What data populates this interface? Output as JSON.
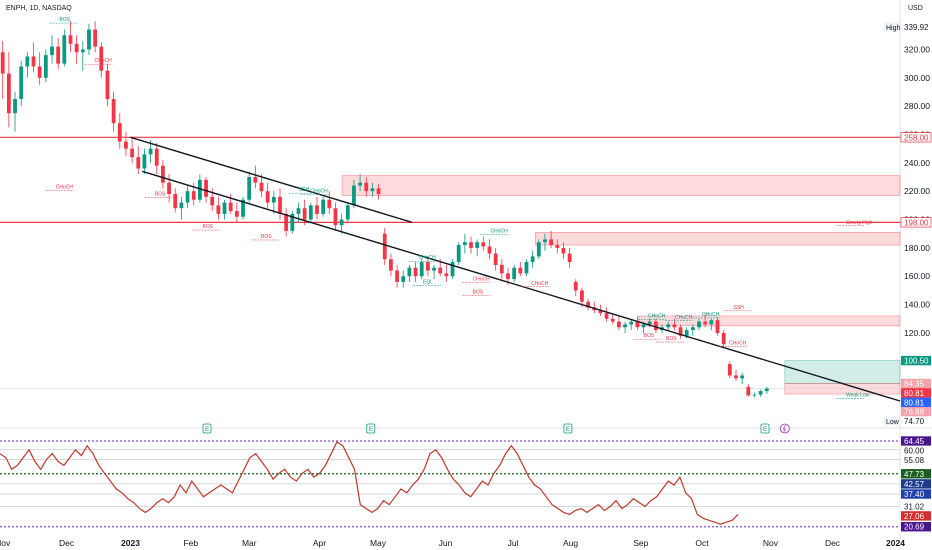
{
  "header": {
    "symbol": "ENPH, 1D, NASDAQ",
    "currency": "USD"
  },
  "chart_data": {
    "type": "candlestick",
    "y_axis": {
      "range": [
        60,
        345
      ],
      "ticks": [
        60,
        80,
        100,
        120,
        140,
        160,
        180,
        200,
        220,
        240,
        260,
        280,
        300,
        320
      ]
    },
    "x_axis": {
      "labels": [
        {
          "label": "Nov",
          "pos": 0.003
        },
        {
          "label": "Dec",
          "pos": 0.074
        },
        {
          "label": "2023",
          "pos": 0.145
        },
        {
          "label": "Feb",
          "pos": 0.212
        },
        {
          "label": "Mar",
          "pos": 0.277
        },
        {
          "label": "Apr",
          "pos": 0.355
        },
        {
          "label": "May",
          "pos": 0.42
        },
        {
          "label": "Jun",
          "pos": 0.495
        },
        {
          "label": "Jul",
          "pos": 0.57
        },
        {
          "label": "Aug",
          "pos": 0.634
        },
        {
          "label": "Sep",
          "pos": 0.712
        },
        {
          "label": "Oct",
          "pos": 0.78
        },
        {
          "label": "Nov",
          "pos": 0.856
        },
        {
          "label": "Dec",
          "pos": 0.925
        },
        {
          "label": "2024",
          "pos": 0.995
        }
      ]
    },
    "price_tags": [
      {
        "label": "High",
        "value": 339.92,
        "style": "high"
      },
      {
        "label": "",
        "value": 258.0,
        "style": "red-outline"
      },
      {
        "label": "",
        "value": 198.0,
        "style": "red-outline"
      },
      {
        "label": "",
        "value": 100.5,
        "style": "teal"
      },
      {
        "label": "",
        "value": 84.35,
        "style": "pink"
      },
      {
        "label": "",
        "value": 80.81,
        "style": "red"
      },
      {
        "label": "",
        "value": 80.81,
        "style": "blue"
      },
      {
        "label": "",
        "value": 76.88,
        "style": "pink"
      },
      {
        "label": "Low",
        "value": 74.7,
        "style": "low"
      }
    ],
    "horizontal_levels": [
      258,
      198
    ],
    "zones": [
      {
        "from_x": 0.38,
        "to_x": 1.0,
        "low": 217,
        "high": 231,
        "kind": "supply"
      },
      {
        "from_x": 0.595,
        "to_x": 1.0,
        "low": 182,
        "high": 191,
        "kind": "supply"
      },
      {
        "from_x": 0.71,
        "to_x": 1.0,
        "low": 125,
        "high": 132,
        "kind": "supply"
      },
      {
        "from_x": 0.872,
        "to_x": 1.0,
        "low": 84.35,
        "high": 100.5,
        "kind": "target"
      },
      {
        "from_x": 0.872,
        "to_x": 1.0,
        "low": 76.88,
        "high": 84.35,
        "kind": "stop"
      }
    ],
    "trendlines": [
      {
        "x1": 0.145,
        "y1": 258,
        "x2": 0.458,
        "y2": 198
      },
      {
        "x1": 0.158,
        "y1": 234,
        "x2": 1.0,
        "y2": 72
      }
    ],
    "annotations": [
      {
        "text": "BOS",
        "x": 0.066,
        "y": 340,
        "color": "#089981"
      },
      {
        "text": "CHoCH",
        "x": 0.105,
        "y": 311,
        "color": "#f23645"
      },
      {
        "text": "CHoCH",
        "x": 0.062,
        "y": 222,
        "color": "#f23645"
      },
      {
        "text": "BOS",
        "x": 0.172,
        "y": 217,
        "color": "#f23645"
      },
      {
        "text": "CHoCH",
        "x": 0.345,
        "y": 219,
        "color": "#089981"
      },
      {
        "text": "SSH",
        "x": 0.332,
        "y": 220,
        "color": "#089981"
      },
      {
        "text": "BOS",
        "x": 0.29,
        "y": 187,
        "color": "#f23645"
      },
      {
        "text": "BOS",
        "x": 0.225,
        "y": 194,
        "color": "#f23645"
      },
      {
        "text": "CHoCH",
        "x": 0.545,
        "y": 191,
        "color": "#089981"
      },
      {
        "text": "CHoCH",
        "x": 0.465,
        "y": 172,
        "color": "#089981"
      },
      {
        "text": "CHoCH",
        "x": 0.525,
        "y": 157,
        "color": "#f23645"
      },
      {
        "text": "CHoCH",
        "x": 0.59,
        "y": 154,
        "color": "#f23645"
      },
      {
        "text": "EQL",
        "x": 0.47,
        "y": 155,
        "color": "#089981"
      },
      {
        "text": "BOS",
        "x": 0.525,
        "y": 148,
        "color": "#f23645"
      },
      {
        "text": "CHoCH",
        "x": 0.72,
        "y": 131,
        "color": "#089981"
      },
      {
        "text": "CHoCH",
        "x": 0.75,
        "y": 130,
        "color": "#089981"
      },
      {
        "text": "CHoCH",
        "x": 0.78,
        "y": 132,
        "color": "#089981"
      },
      {
        "text": "SSH",
        "x": 0.815,
        "y": 137,
        "color": "#f23645"
      },
      {
        "text": "BOS",
        "x": 0.715,
        "y": 117,
        "color": "#f23645"
      },
      {
        "text": "BOS",
        "x": 0.74,
        "y": 115,
        "color": "#f23645"
      },
      {
        "text": "CHoCH",
        "x": 0.81,
        "y": 112,
        "color": "#f23645"
      },
      {
        "text": "Strong High",
        "x": 0.94,
        "y": 197,
        "color": "#f23645"
      },
      {
        "text": "Weak Low",
        "x": 0.94,
        "y": 75,
        "color": "#089981"
      }
    ],
    "earnings_markers": [
      0.23,
      0.412,
      0.631,
      0.85
    ],
    "dividend_markers": [
      0.872
    ],
    "candles": [
      {
        "o": 318,
        "h": 326,
        "l": 285,
        "c": 303
      },
      {
        "o": 303,
        "h": 318,
        "l": 265,
        "c": 275
      },
      {
        "o": 275,
        "h": 290,
        "l": 262,
        "c": 285
      },
      {
        "o": 285,
        "h": 312,
        "l": 280,
        "c": 308
      },
      {
        "o": 308,
        "h": 318,
        "l": 300,
        "c": 315
      },
      {
        "o": 315,
        "h": 325,
        "l": 304,
        "c": 308
      },
      {
        "o": 308,
        "h": 318,
        "l": 295,
        "c": 300
      },
      {
        "o": 300,
        "h": 320,
        "l": 297,
        "c": 316
      },
      {
        "o": 316,
        "h": 330,
        "l": 310,
        "c": 322
      },
      {
        "o": 322,
        "h": 328,
        "l": 306,
        "c": 310
      },
      {
        "o": 310,
        "h": 334,
        "l": 308,
        "c": 330
      },
      {
        "o": 330,
        "h": 340,
        "l": 318,
        "c": 324
      },
      {
        "o": 324,
        "h": 330,
        "l": 310,
        "c": 318
      },
      {
        "o": 318,
        "h": 326,
        "l": 305,
        "c": 320
      },
      {
        "o": 320,
        "h": 338,
        "l": 316,
        "c": 334
      },
      {
        "o": 334,
        "h": 339.92,
        "l": 318,
        "c": 322
      },
      {
        "o": 322,
        "h": 325,
        "l": 300,
        "c": 305
      },
      {
        "o": 305,
        "h": 310,
        "l": 280,
        "c": 285
      },
      {
        "o": 285,
        "h": 290,
        "l": 262,
        "c": 268
      },
      {
        "o": 268,
        "h": 275,
        "l": 250,
        "c": 255
      },
      {
        "o": 255,
        "h": 262,
        "l": 245,
        "c": 250
      },
      {
        "o": 250,
        "h": 258,
        "l": 240,
        "c": 244
      },
      {
        "o": 244,
        "h": 252,
        "l": 232,
        "c": 236
      },
      {
        "o": 236,
        "h": 250,
        "l": 232,
        "c": 246
      },
      {
        "o": 246,
        "h": 256,
        "l": 240,
        "c": 250
      },
      {
        "o": 250,
        "h": 254,
        "l": 232,
        "c": 238
      },
      {
        "o": 238,
        "h": 242,
        "l": 222,
        "c": 226
      },
      {
        "o": 226,
        "h": 232,
        "l": 212,
        "c": 218
      },
      {
        "o": 218,
        "h": 222,
        "l": 205,
        "c": 208
      },
      {
        "o": 208,
        "h": 216,
        "l": 200,
        "c": 212
      },
      {
        "o": 212,
        "h": 224,
        "l": 208,
        "c": 220
      },
      {
        "o": 220,
        "h": 226,
        "l": 210,
        "c": 214
      },
      {
        "o": 214,
        "h": 232,
        "l": 212,
        "c": 228
      },
      {
        "o": 228,
        "h": 230,
        "l": 212,
        "c": 216
      },
      {
        "o": 216,
        "h": 222,
        "l": 206,
        "c": 210
      },
      {
        "o": 210,
        "h": 216,
        "l": 200,
        "c": 204
      },
      {
        "o": 204,
        "h": 214,
        "l": 200,
        "c": 212
      },
      {
        "o": 212,
        "h": 218,
        "l": 204,
        "c": 206
      },
      {
        "o": 206,
        "h": 212,
        "l": 198,
        "c": 202
      },
      {
        "o": 202,
        "h": 216,
        "l": 200,
        "c": 214
      },
      {
        "o": 214,
        "h": 234,
        "l": 212,
        "c": 230
      },
      {
        "o": 230,
        "h": 238,
        "l": 222,
        "c": 226
      },
      {
        "o": 226,
        "h": 232,
        "l": 216,
        "c": 220
      },
      {
        "o": 220,
        "h": 226,
        "l": 208,
        "c": 212
      },
      {
        "o": 212,
        "h": 220,
        "l": 204,
        "c": 216
      },
      {
        "o": 216,
        "h": 222,
        "l": 200,
        "c": 204
      },
      {
        "o": 204,
        "h": 208,
        "l": 188,
        "c": 192
      },
      {
        "o": 192,
        "h": 206,
        "l": 190,
        "c": 204
      },
      {
        "o": 204,
        "h": 212,
        "l": 198,
        "c": 208
      },
      {
        "o": 208,
        "h": 214,
        "l": 196,
        "c": 200
      },
      {
        "o": 200,
        "h": 212,
        "l": 198,
        "c": 210
      },
      {
        "o": 210,
        "h": 216,
        "l": 200,
        "c": 204
      },
      {
        "o": 204,
        "h": 216,
        "l": 202,
        "c": 214
      },
      {
        "o": 214,
        "h": 220,
        "l": 204,
        "c": 208
      },
      {
        "o": 208,
        "h": 212,
        "l": 192,
        "c": 196
      },
      {
        "o": 196,
        "h": 204,
        "l": 190,
        "c": 200
      },
      {
        "o": 200,
        "h": 212,
        "l": 198,
        "c": 210
      },
      {
        "o": 210,
        "h": 228,
        "l": 208,
        "c": 224
      },
      {
        "o": 224,
        "h": 232,
        "l": 220,
        "c": 226
      },
      {
        "o": 226,
        "h": 230,
        "l": 216,
        "c": 220
      },
      {
        "o": 220,
        "h": 226,
        "l": 216,
        "c": 222
      },
      {
        "o": 222,
        "h": 225,
        "l": 214,
        "c": 218
      },
      {
        "o": 190,
        "h": 194,
        "l": 168,
        "c": 172
      },
      {
        "o": 172,
        "h": 176,
        "l": 160,
        "c": 164
      },
      {
        "o": 164,
        "h": 168,
        "l": 152,
        "c": 156
      },
      {
        "o": 156,
        "h": 164,
        "l": 152,
        "c": 160
      },
      {
        "o": 160,
        "h": 168,
        "l": 156,
        "c": 166
      },
      {
        "o": 166,
        "h": 170,
        "l": 156,
        "c": 160
      },
      {
        "o": 160,
        "h": 172,
        "l": 158,
        "c": 170
      },
      {
        "o": 170,
        "h": 174,
        "l": 160,
        "c": 164
      },
      {
        "o": 164,
        "h": 168,
        "l": 158,
        "c": 166
      },
      {
        "o": 166,
        "h": 172,
        "l": 160,
        "c": 162
      },
      {
        "o": 162,
        "h": 168,
        "l": 156,
        "c": 160
      },
      {
        "o": 160,
        "h": 172,
        "l": 158,
        "c": 170
      },
      {
        "o": 170,
        "h": 184,
        "l": 168,
        "c": 182
      },
      {
        "o": 182,
        "h": 190,
        "l": 176,
        "c": 184
      },
      {
        "o": 184,
        "h": 188,
        "l": 176,
        "c": 180
      },
      {
        "o": 180,
        "h": 186,
        "l": 174,
        "c": 184
      },
      {
        "o": 184,
        "h": 188,
        "l": 178,
        "c": 181
      },
      {
        "o": 181,
        "h": 186,
        "l": 172,
        "c": 176
      },
      {
        "o": 176,
        "h": 180,
        "l": 164,
        "c": 168
      },
      {
        "o": 168,
        "h": 172,
        "l": 158,
        "c": 162
      },
      {
        "o": 162,
        "h": 166,
        "l": 154,
        "c": 158
      },
      {
        "o": 158,
        "h": 168,
        "l": 156,
        "c": 166
      },
      {
        "o": 166,
        "h": 170,
        "l": 160,
        "c": 162
      },
      {
        "o": 162,
        "h": 172,
        "l": 160,
        "c": 170
      },
      {
        "o": 170,
        "h": 178,
        "l": 166,
        "c": 174
      },
      {
        "o": 174,
        "h": 186,
        "l": 172,
        "c": 184
      },
      {
        "o": 184,
        "h": 190,
        "l": 178,
        "c": 186
      },
      {
        "o": 186,
        "h": 192,
        "l": 180,
        "c": 182
      },
      {
        "o": 182,
        "h": 186,
        "l": 176,
        "c": 180
      },
      {
        "o": 180,
        "h": 184,
        "l": 172,
        "c": 176
      },
      {
        "o": 176,
        "h": 180,
        "l": 166,
        "c": 170
      },
      {
        "o": 156,
        "h": 158,
        "l": 146,
        "c": 150
      },
      {
        "o": 150,
        "h": 152,
        "l": 138,
        "c": 142
      },
      {
        "o": 142,
        "h": 144,
        "l": 136,
        "c": 138
      },
      {
        "o": 138,
        "h": 142,
        "l": 134,
        "c": 136
      },
      {
        "o": 136,
        "h": 140,
        "l": 132,
        "c": 134
      },
      {
        "o": 134,
        "h": 138,
        "l": 128,
        "c": 130
      },
      {
        "o": 130,
        "h": 134,
        "l": 126,
        "c": 128
      },
      {
        "o": 128,
        "h": 132,
        "l": 122,
        "c": 124
      },
      {
        "o": 124,
        "h": 128,
        "l": 120,
        "c": 126
      },
      {
        "o": 126,
        "h": 130,
        "l": 122,
        "c": 128
      },
      {
        "o": 128,
        "h": 132,
        "l": 122,
        "c": 124
      },
      {
        "o": 124,
        "h": 128,
        "l": 120,
        "c": 126
      },
      {
        "o": 126,
        "h": 130,
        "l": 124,
        "c": 128
      },
      {
        "o": 128,
        "h": 130,
        "l": 120,
        "c": 122
      },
      {
        "o": 122,
        "h": 126,
        "l": 120,
        "c": 124
      },
      {
        "o": 124,
        "h": 128,
        "l": 122,
        "c": 126
      },
      {
        "o": 126,
        "h": 130,
        "l": 122,
        "c": 124
      },
      {
        "o": 124,
        "h": 126,
        "l": 116,
        "c": 118
      },
      {
        "o": 118,
        "h": 124,
        "l": 116,
        "c": 122
      },
      {
        "o": 122,
        "h": 126,
        "l": 118,
        "c": 124
      },
      {
        "o": 124,
        "h": 130,
        "l": 122,
        "c": 128
      },
      {
        "o": 128,
        "h": 134,
        "l": 124,
        "c": 126
      },
      {
        "o": 126,
        "h": 130,
        "l": 122,
        "c": 129
      },
      {
        "o": 129,
        "h": 131,
        "l": 118,
        "c": 120
      },
      {
        "o": 120,
        "h": 122,
        "l": 110,
        "c": 112
      },
      {
        "o": 98,
        "h": 100,
        "l": 88,
        "c": 90
      },
      {
        "o": 90,
        "h": 94,
        "l": 86,
        "c": 88
      },
      {
        "o": 88,
        "h": 92,
        "l": 84,
        "c": 90
      },
      {
        "o": 82,
        "h": 84,
        "l": 75,
        "c": 76
      },
      {
        "o": 76,
        "h": 78,
        "l": 74.7,
        "c": 76.5
      },
      {
        "o": 76.5,
        "h": 80,
        "l": 75,
        "c": 79
      },
      {
        "o": 79,
        "h": 82,
        "l": 77,
        "c": 80.81
      }
    ]
  },
  "rsi": {
    "y_range": [
      18,
      66
    ],
    "levels": [
      {
        "value": 64.45,
        "style": "dotted",
        "color": "#7e57c2"
      },
      {
        "value": 60.0,
        "style": "solid-thin",
        "color": "#b2b5be"
      },
      {
        "value": 55.08,
        "style": "solid-thin",
        "color": "#b2b5be"
      },
      {
        "value": 47.73,
        "style": "dotted",
        "color": "#1b5e20"
      },
      {
        "value": 42.57,
        "style": "solid-thin",
        "color": "#b2b5be"
      },
      {
        "value": 37.4,
        "style": "solid-thin",
        "color": "#b2b5be"
      },
      {
        "value": 31.02,
        "style": "solid-thin",
        "color": "#b2b5be"
      },
      {
        "value": 20.69,
        "style": "dotted",
        "color": "#7e57c2"
      }
    ],
    "tags": [
      {
        "value": 64.45,
        "color": "#4a148c"
      },
      {
        "value": 60.0,
        "color": "none"
      },
      {
        "value": 55.08,
        "color": "none"
      },
      {
        "value": 47.73,
        "color": "#1b5e20"
      },
      {
        "value": 42.57,
        "color": "#1e3a8a"
      },
      {
        "value": 37.4,
        "color": "#1e40af"
      },
      {
        "value": 31.02,
        "color": "none"
      },
      {
        "value": 27.06,
        "color": "#d32f2f"
      },
      {
        "value": 20.69,
        "color": "#4a148c"
      }
    ],
    "values": [
      58,
      56,
      50,
      52,
      56,
      60,
      54,
      50,
      55,
      58,
      54,
      52,
      56,
      60,
      57,
      62,
      58,
      52,
      48,
      44,
      40,
      38,
      35,
      33,
      30,
      28,
      30,
      33,
      35,
      33,
      36,
      42,
      38,
      44,
      40,
      36,
      38,
      40,
      42,
      40,
      38,
      44,
      50,
      56,
      58,
      54,
      50,
      45,
      48,
      50,
      46,
      44,
      48,
      50,
      46,
      48,
      52,
      58,
      64,
      62,
      56,
      50,
      32,
      30,
      28,
      30,
      34,
      32,
      36,
      40,
      38,
      42,
      45,
      50,
      58,
      60,
      56,
      50,
      45,
      42,
      38,
      36,
      40,
      44,
      42,
      48,
      52,
      58,
      62,
      58,
      52,
      46,
      42,
      40,
      36,
      32,
      30,
      28,
      27,
      29,
      30,
      28,
      30,
      32,
      29,
      31,
      34,
      30,
      32,
      35,
      33,
      31,
      34,
      36,
      40,
      44,
      42,
      46,
      38,
      35,
      27,
      25,
      24,
      23,
      22,
      23,
      24,
      27
    ]
  }
}
